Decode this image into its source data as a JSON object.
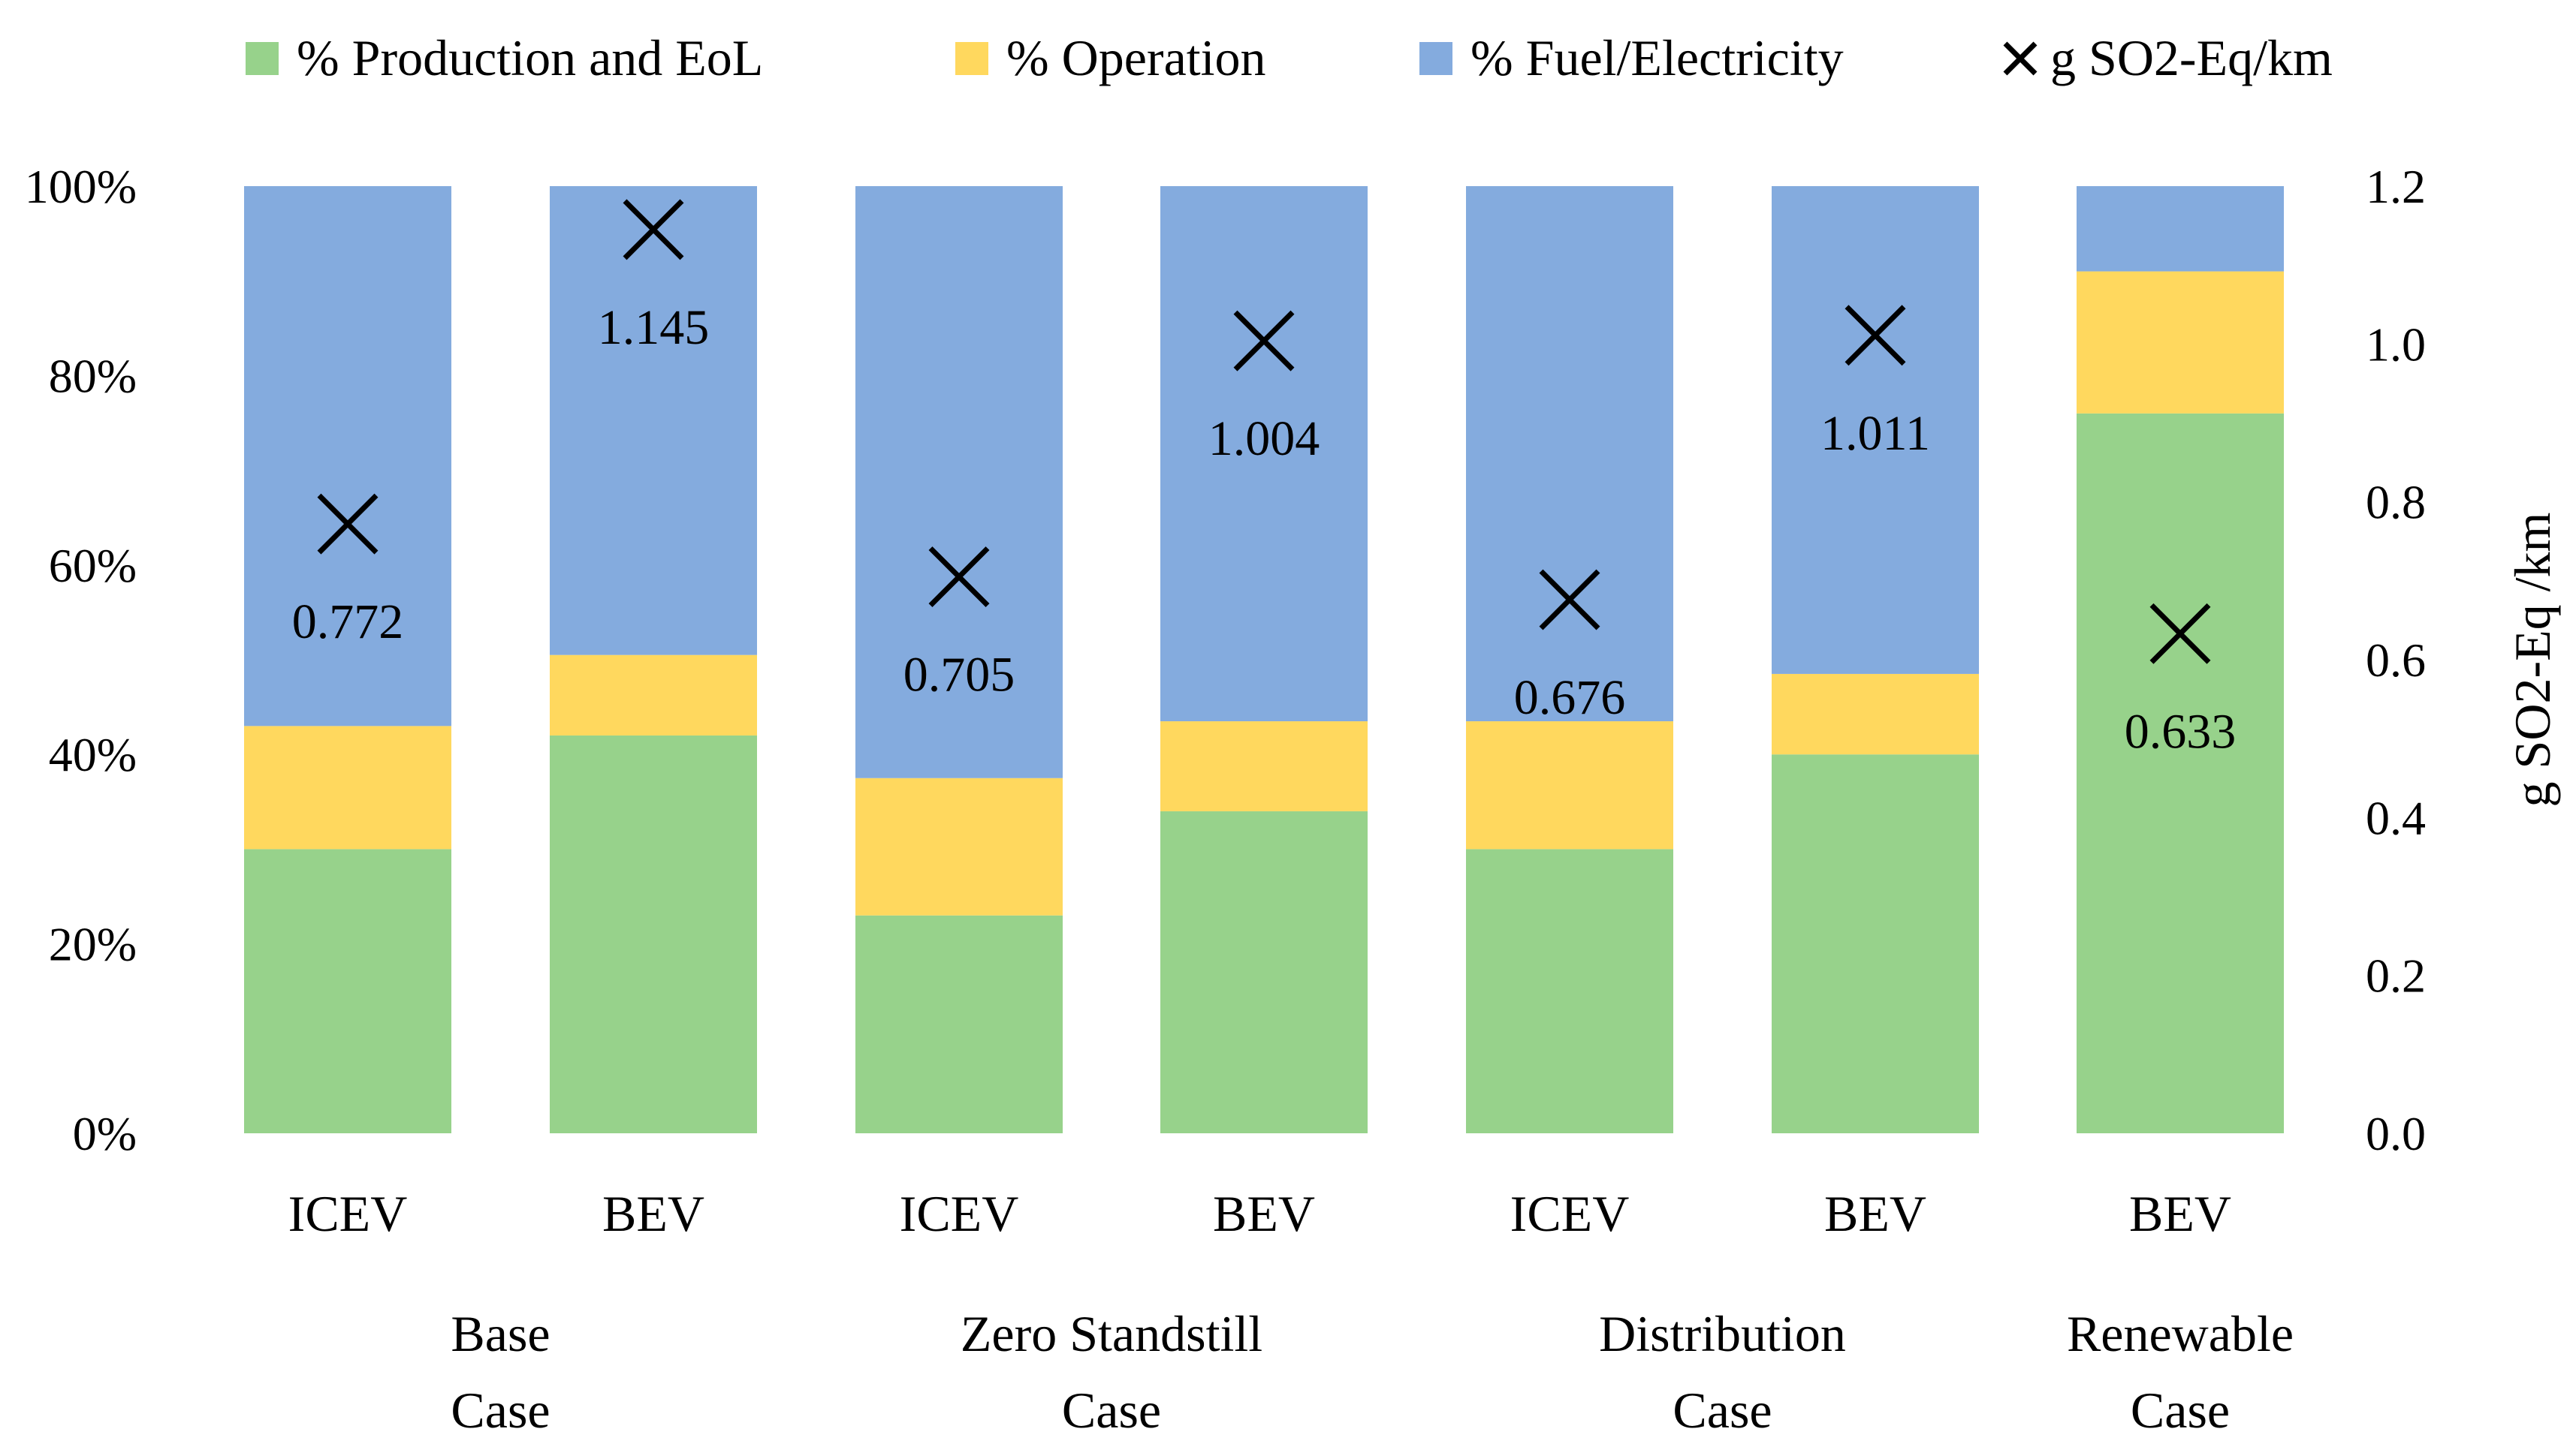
{
  "chart_data": {
    "type": "bar",
    "stacked": true,
    "percent_stacked": true,
    "categories": [
      "ICEV",
      "BEV",
      "ICEV",
      "BEV",
      "ICEV",
      "BEV",
      "BEV"
    ],
    "groups": [
      {
        "label_lines": [
          "Base",
          "Case"
        ],
        "bars": [
          0,
          1
        ]
      },
      {
        "label_lines": [
          "Zero Standstill",
          "Case"
        ],
        "bars": [
          2,
          3
        ]
      },
      {
        "label_lines": [
          "Distribution",
          "Case"
        ],
        "bars": [
          4,
          5
        ]
      },
      {
        "label_lines": [
          "Renewable",
          "Case"
        ],
        "bars": [
          6
        ]
      }
    ],
    "series": [
      {
        "name": "% Production and EoL",
        "color": "#97D28B",
        "values": [
          30,
          42,
          23,
          34,
          30,
          40,
          76
        ]
      },
      {
        "name": "% Operation",
        "color": "#FFD85E",
        "values": [
          13,
          8.5,
          14.5,
          9.5,
          13.5,
          8.5,
          15
        ]
      },
      {
        "name": "% Fuel/Electricity",
        "color": "#84ABDE",
        "values": [
          57,
          49.5,
          62.5,
          56.5,
          56.5,
          51.5,
          9
        ]
      }
    ],
    "secondary_series": {
      "name": "g SO2-Eq/km",
      "marker": "x",
      "values": [
        0.772,
        1.145,
        0.705,
        1.004,
        0.676,
        1.011,
        0.633
      ],
      "labels": [
        "0.772",
        "1.145",
        "0.705",
        "1.004",
        "0.676",
        "1.011",
        "0.633"
      ]
    },
    "y_left": {
      "ylim": [
        0,
        100
      ],
      "ticks": [
        0,
        20,
        40,
        60,
        80,
        100
      ],
      "tick_labels": [
        "0%",
        "20%",
        "40%",
        "60%",
        "80%",
        "100%"
      ]
    },
    "y_right": {
      "ylim": [
        0,
        1.2
      ],
      "ticks": [
        0,
        0.2,
        0.4,
        0.6,
        0.8,
        1.0,
        1.2
      ],
      "tick_labels": [
        "0.0",
        "0.2",
        "0.4",
        "0.6",
        "0.8",
        "1.0",
        "1.2"
      ],
      "label": "g SO2-Eq /km"
    },
    "legend": {
      "position": "top",
      "entries": [
        "% Production and EoL",
        "% Operation",
        "% Fuel/Electricity",
        "g SO2-Eq/km"
      ]
    },
    "grid": false
  }
}
